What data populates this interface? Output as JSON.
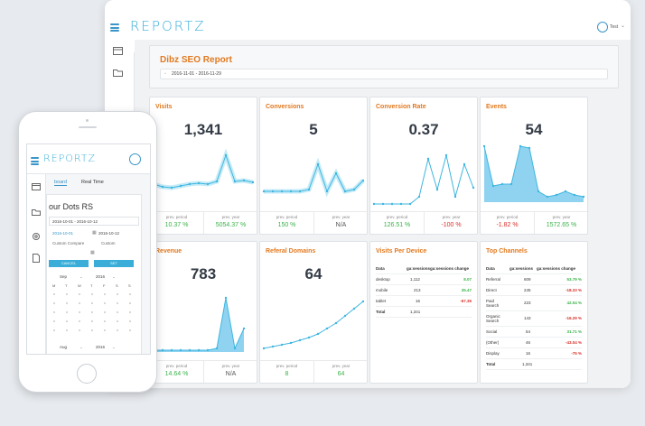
{
  "app": {
    "logo": "REPORTZ",
    "user": "Test"
  },
  "report": {
    "title": "Dibz SEO Report",
    "date_range": "2016-11-01 - 2016-11-29"
  },
  "cards": {
    "visits": {
      "title": "Visits",
      "value": "1,341",
      "prev_label": "prev. period",
      "prev_value": "10.37 %",
      "year_label": "prev. year",
      "year_value": "5054.37 %"
    },
    "conversions": {
      "title": "Conversions",
      "value": "5",
      "prev_label": "prev. period",
      "prev_value": "150 %",
      "year_label": "prev. year",
      "year_value": "N/A"
    },
    "conversion_rate": {
      "title": "Conversion Rate",
      "value": "0.37",
      "prev_label": "prev. period",
      "prev_value": "126.51 %",
      "year_label": "prev. year",
      "year_value": "-100 %"
    },
    "events": {
      "title": "Events",
      "value": "54",
      "prev_label": "prev. period",
      "prev_value": "-1.82 %",
      "year_label": "prev. year",
      "year_value": "1572.65 %"
    },
    "revenue": {
      "title": "Revenue",
      "value": "783",
      "prev_label": "prev. period",
      "prev_value": "14.64 %",
      "year_label": "prev. year",
      "year_value": "N/A"
    },
    "referral_domains": {
      "title": "Referal Domains",
      "value": "64",
      "prev_label": "prev. period",
      "prev_value": "8",
      "year_label": "prev. year",
      "year_value": "64"
    }
  },
  "visits_device": {
    "title": "Visits Per Device",
    "headers": [
      "Data",
      "ga:sessions",
      "ga:sessions change"
    ],
    "rows": [
      {
        "name": "desktop",
        "sessions": "1,112",
        "change": "8.07",
        "color": "#3bb34a"
      },
      {
        "name": "mobile",
        "sessions": "213",
        "change": "35.47",
        "color": "#3bb34a"
      },
      {
        "name": "tablet",
        "sessions": "16",
        "change": "-67.35",
        "color": "#d8322c"
      },
      {
        "name": "Total",
        "sessions": "1,341",
        "change": "",
        "color": "#333"
      }
    ]
  },
  "top_channels": {
    "title": "Top Channels",
    "headers": [
      "Data",
      "ga:sessions",
      "ga:sessions change"
    ],
    "rows": [
      {
        "name": "Referral",
        "sessions": "609",
        "change": "53.79 %",
        "color": "#3bb34a"
      },
      {
        "name": "Direct",
        "sessions": "245",
        "change": "-18.33 %",
        "color": "#d8322c"
      },
      {
        "name": "Paid Search",
        "sessions": "223",
        "change": "42.04 %",
        "color": "#3bb34a"
      },
      {
        "name": "Organic Search",
        "sessions": "143",
        "change": "-16.29 %",
        "color": "#d8322c"
      },
      {
        "name": "Social",
        "sessions": "54",
        "change": "31.71 %",
        "color": "#3bb34a"
      },
      {
        "name": "(Other)",
        "sessions": "46",
        "change": "-43.04 %",
        "color": "#d8322c"
      },
      {
        "name": "Display",
        "sessions": "16",
        "change": "-75 %",
        "color": "#d8322c"
      },
      {
        "name": "Total",
        "sessions": "1,341",
        "change": "",
        "color": "#333"
      }
    ]
  },
  "phone": {
    "logo": "REPORTZ",
    "tabs": [
      "board",
      "Real Time"
    ],
    "heading": "our Dots RS",
    "range1": "2016-10-01 - 2016-10-12",
    "date_a": "2016-10-01",
    "date_b": "2016-10-12",
    "compare": "Custom Compare",
    "custom": "Custom",
    "cancel": "CANCEL",
    "set": "SET",
    "month1": "Sep",
    "year1": "2016",
    "weekdays": [
      "M",
      "T",
      "W",
      "T",
      "F",
      "S",
      "S"
    ],
    "month2": "Aug",
    "year2": "2016"
  },
  "colors": {
    "accent": "#3aaed8",
    "orange": "#e2791f",
    "line": "#3fb6e0",
    "fill": "#8fd3f0"
  }
}
